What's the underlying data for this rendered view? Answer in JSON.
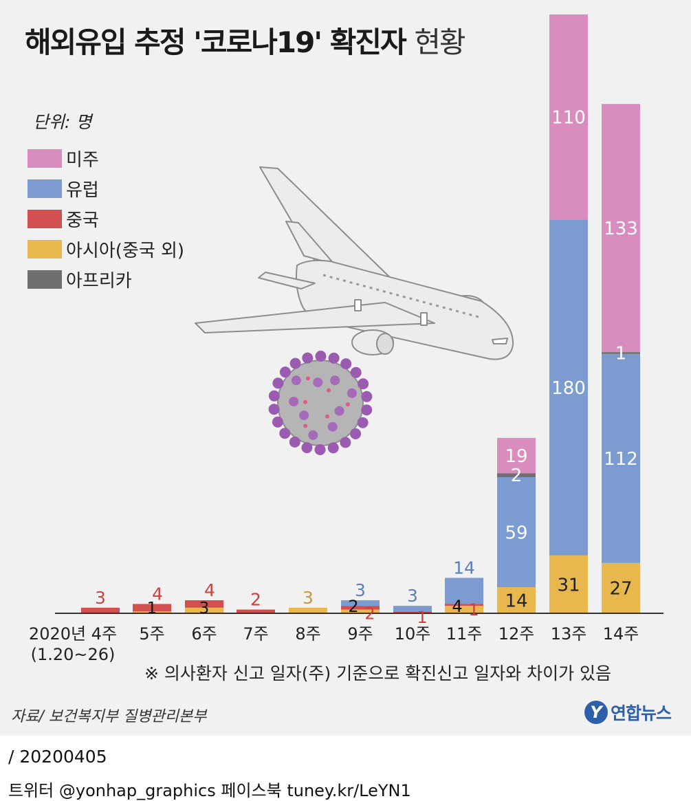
{
  "title": {
    "bold": "해외유입 추정 '코로나19' 확진자",
    "light": "현황"
  },
  "unit_label": "단위: 명",
  "note": "※ 의사환자 신고 일자(주) 기준으로 확진신고 일자와 차이가 있음",
  "source": "자료/ 보건복지부 질병관리본부",
  "brand": {
    "icon_letter": "Y",
    "name": "연합뉴스"
  },
  "date_line": "/ 20200405",
  "social_line": "트위터 @yonhap_graphics  페이스북 tuney.kr/LeYN1",
  "icons": [
    "airplane-illustration",
    "coronavirus-illustration"
  ],
  "chart_data": {
    "type": "bar",
    "stacked": true,
    "title": "해외유입 추정 '코로나19' 확진자 현황",
    "unit": "명",
    "legend_position": "left",
    "grid": false,
    "categories": [
      "2020년 4주\n(1.20~26)",
      "5주",
      "6주",
      "7주",
      "8주",
      "9주",
      "10주",
      "11주",
      "12주",
      "13주",
      "14주"
    ],
    "series": [
      {
        "name": "아시아(중국 외)",
        "key": "asia",
        "color": "#e8b84e",
        "values": [
          0,
          1,
          3,
          0,
          3,
          2,
          0,
          4,
          14,
          31,
          27
        ]
      },
      {
        "name": "중국",
        "key": "china",
        "color": "#d24f4f",
        "values": [
          3,
          4,
          4,
          2,
          0,
          2,
          1,
          1,
          0,
          0,
          0
        ]
      },
      {
        "name": "유럽",
        "key": "europe",
        "color": "#7b9bd1",
        "values": [
          0,
          0,
          0,
          0,
          0,
          3,
          3,
          14,
          59,
          180,
          112
        ]
      },
      {
        "name": "아프리카",
        "key": "africa",
        "color": "#6f6f6f",
        "values": [
          0,
          0,
          0,
          0,
          0,
          0,
          0,
          0,
          2,
          0,
          1
        ]
      },
      {
        "name": "미주",
        "key": "americas",
        "color": "#d98dbf",
        "values": [
          0,
          0,
          0,
          0,
          0,
          0,
          0,
          0,
          19,
          110,
          133
        ]
      }
    ],
    "legend_order": [
      "americas",
      "europe",
      "china",
      "asia",
      "africa"
    ],
    "ylim": [
      0,
      321
    ]
  }
}
